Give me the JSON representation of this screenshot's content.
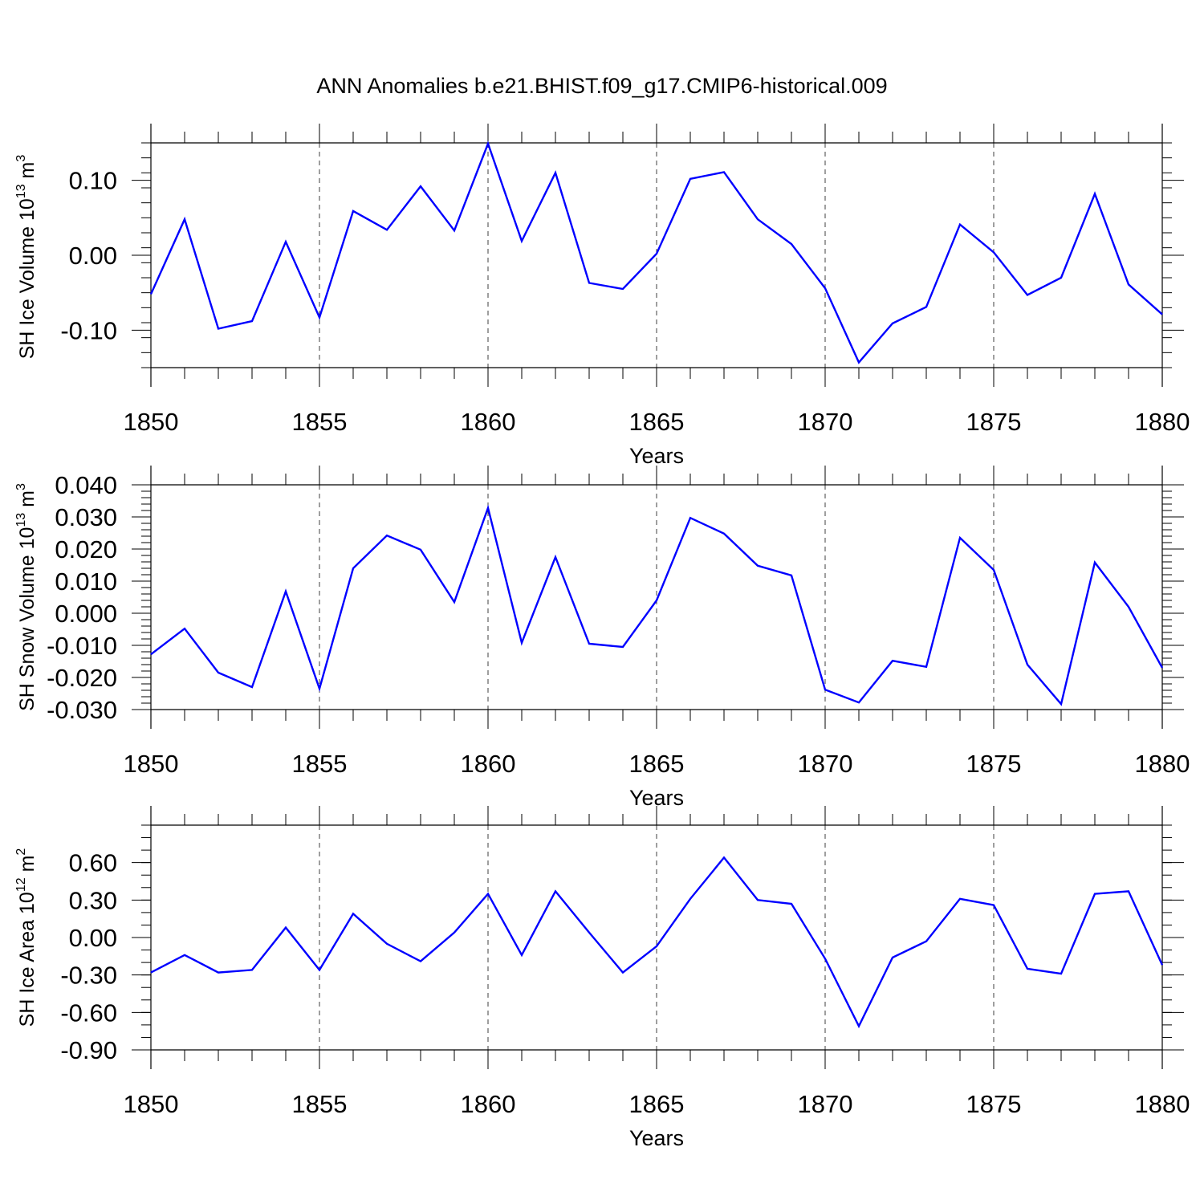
{
  "title": "ANN Anomalies b.e21.BHIST.f09_g17.CMIP6-historical.009",
  "colors": {
    "series": "#0000ff",
    "axis": "#000000",
    "background": "#ffffff"
  },
  "chart_data": [
    {
      "type": "line",
      "ylabel_main": "SH Ice Volume 10",
      "ylabel_exp": "13",
      "ylabel_unit": " m",
      "ylabel_unit_exp": "3",
      "xlabel": "Years",
      "xlim": [
        1850,
        1880
      ],
      "ylim": [
        -0.15,
        0.15
      ],
      "x_ticks": [
        1850,
        1855,
        1860,
        1865,
        1870,
        1875,
        1880
      ],
      "x_tick_labels": [
        "1850",
        "1855",
        "1860",
        "1865",
        "1870",
        "1875",
        "1880"
      ],
      "y_ticks": [
        -0.1,
        0.0,
        0.1
      ],
      "y_tick_labels": [
        "-0.10",
        "0.00",
        "0.10"
      ],
      "y_minor_step": 0.02,
      "x": [
        1850,
        1851,
        1852,
        1853,
        1854,
        1855,
        1856,
        1857,
        1858,
        1859,
        1860,
        1861,
        1862,
        1863,
        1864,
        1865,
        1866,
        1867,
        1868,
        1869,
        1870,
        1871,
        1872,
        1873,
        1874,
        1875,
        1876,
        1877,
        1878,
        1879,
        1880
      ],
      "series": [
        {
          "name": "SH Ice Volume",
          "values": [
            -0.052,
            0.048,
            -0.098,
            -0.088,
            0.018,
            -0.083,
            0.059,
            0.034,
            0.092,
            0.033,
            0.149,
            0.019,
            0.11,
            -0.037,
            -0.045,
            0.002,
            0.102,
            0.111,
            0.048,
            0.015,
            -0.044,
            -0.143,
            -0.091,
            -0.069,
            0.041,
            0.004,
            -0.053,
            -0.03,
            0.082,
            -0.039,
            -0.079
          ]
        }
      ]
    },
    {
      "type": "line",
      "ylabel_main": "SH Snow Volume 10",
      "ylabel_exp": "13",
      "ylabel_unit": " m",
      "ylabel_unit_exp": "3",
      "xlabel": "Years",
      "xlim": [
        1850,
        1880
      ],
      "ylim": [
        -0.03,
        0.04
      ],
      "x_ticks": [
        1850,
        1855,
        1860,
        1865,
        1870,
        1875,
        1880
      ],
      "x_tick_labels": [
        "1850",
        "1855",
        "1860",
        "1865",
        "1870",
        "1875",
        "1880"
      ],
      "y_ticks": [
        -0.03,
        -0.02,
        -0.01,
        0.0,
        0.01,
        0.02,
        0.03,
        0.04
      ],
      "y_tick_labels": [
        "-0.030",
        "-0.020",
        "-0.010",
        "0.000",
        "0.010",
        "0.020",
        "0.030",
        "0.040"
      ],
      "y_minor_step": 0.002,
      "x": [
        1850,
        1851,
        1852,
        1853,
        1854,
        1855,
        1856,
        1857,
        1858,
        1859,
        1860,
        1861,
        1862,
        1863,
        1864,
        1865,
        1866,
        1867,
        1868,
        1869,
        1870,
        1871,
        1872,
        1873,
        1874,
        1875,
        1876,
        1877,
        1878,
        1879,
        1880
      ],
      "series": [
        {
          "name": "SH Snow Volume",
          "values": [
            -0.0128,
            -0.0048,
            -0.0185,
            -0.023,
            0.0068,
            -0.0235,
            0.014,
            0.0242,
            0.0198,
            0.0035,
            0.0328,
            -0.0092,
            0.0175,
            -0.0095,
            -0.0105,
            0.004,
            0.0297,
            0.0248,
            0.0148,
            0.0118,
            -0.0238,
            -0.0278,
            -0.0148,
            -0.0167,
            0.0235,
            0.0135,
            -0.016,
            -0.0283,
            0.0158,
            0.002,
            -0.017
          ]
        }
      ]
    },
    {
      "type": "line",
      "ylabel_main": "SH Ice Area 10",
      "ylabel_exp": "12",
      "ylabel_unit": " m",
      "ylabel_unit_exp": "2",
      "xlabel": "Years",
      "xlim": [
        1850,
        1880
      ],
      "ylim": [
        -0.9,
        0.9
      ],
      "x_ticks": [
        1850,
        1855,
        1860,
        1865,
        1870,
        1875,
        1880
      ],
      "x_tick_labels": [
        "1850",
        "1855",
        "1860",
        "1865",
        "1870",
        "1875",
        "1880"
      ],
      "y_ticks": [
        -0.9,
        -0.6,
        -0.3,
        0.0,
        0.3,
        0.6
      ],
      "y_tick_labels": [
        "-0.90",
        "-0.60",
        "-0.30",
        "0.00",
        "0.30",
        "0.60"
      ],
      "y_minor_step": 0.1,
      "x": [
        1850,
        1851,
        1852,
        1853,
        1854,
        1855,
        1856,
        1857,
        1858,
        1859,
        1860,
        1861,
        1862,
        1863,
        1864,
        1865,
        1866,
        1867,
        1868,
        1869,
        1870,
        1871,
        1872,
        1873,
        1874,
        1875,
        1876,
        1877,
        1878,
        1879,
        1880
      ],
      "series": [
        {
          "name": "SH Ice Area",
          "values": [
            -0.28,
            -0.14,
            -0.28,
            -0.26,
            0.08,
            -0.26,
            0.19,
            -0.05,
            -0.19,
            0.04,
            0.35,
            -0.14,
            0.37,
            0.04,
            -0.28,
            -0.07,
            0.31,
            0.64,
            0.3,
            0.27,
            -0.17,
            -0.71,
            -0.16,
            -0.03,
            0.31,
            0.26,
            -0.25,
            -0.29,
            0.35,
            0.37,
            -0.22
          ]
        }
      ]
    }
  ]
}
